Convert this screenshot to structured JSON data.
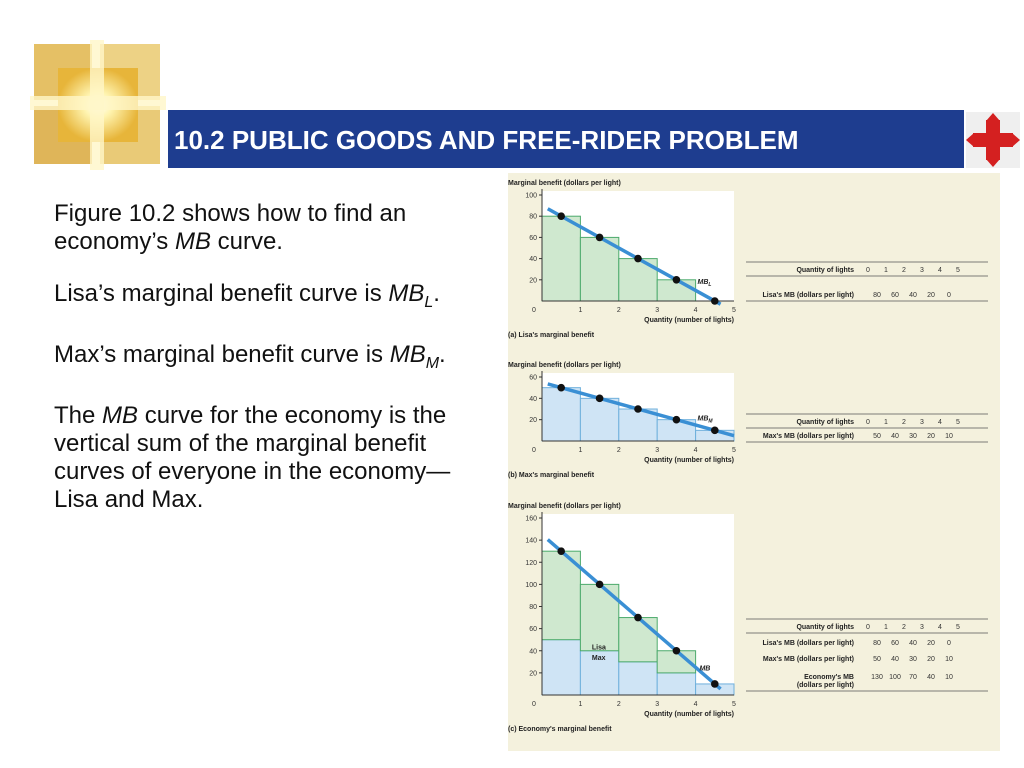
{
  "header": {
    "title": "10.2 PUBLIC GOODS AND FREE-RIDER PROBLEM",
    "icons": {
      "logo": "gold-square-logo-icon",
      "nav": "red-cross-arrows-icon"
    }
  },
  "text": {
    "p1_pre": "Figure 10.2 shows how to find an economy’s ",
    "p1_em": "MB",
    "p1_post": " curve.",
    "p2_pre": "Lisa’s marginal benefit curve is ",
    "p2_em": "MB",
    "p2_sub": "L",
    "p2_post": ".",
    "p3_pre": "Max’s marginal benefit curve is ",
    "p3_em": "MB",
    "p3_sub": "M",
    "p3_post": ".",
    "p4_pre": "The ",
    "p4_em": "MB",
    "p4_post": " curve for the economy is the vertical sum of the marginal benefit curves of everyone in the economy—Lisa and Max."
  },
  "colors": {
    "title_bar": "#1e3d8f",
    "green_bar": "#cfe8cf",
    "blue_bar": "#cfe4f5",
    "line": "#3a8fd4"
  },
  "chart_data": [
    {
      "type": "bar",
      "ylabel": "Marginal benefit (dollars per light)",
      "xlabel": "Quantity (number of lights)",
      "caption": "(a) Lisa's marginal benefit",
      "y_ticks": [
        "100",
        "80",
        "60",
        "40",
        "20"
      ],
      "x_ticks": [
        "0",
        "1",
        "2",
        "3",
        "4",
        "5"
      ],
      "ylim": [
        0,
        100
      ],
      "xlim": [
        0,
        5
      ],
      "values": [
        80,
        60,
        40,
        20,
        0
      ],
      "points": [
        [
          0.5,
          80
        ],
        [
          1.5,
          60
        ],
        [
          2.5,
          40
        ],
        [
          3.5,
          20
        ],
        [
          4.5,
          0
        ]
      ],
      "curve_label": "MB",
      "curve_sub": "L",
      "table": {
        "rows": [
          {
            "label": "Quantity of lights",
            "values": [
              "0",
              "1",
              "2",
              "3",
              "4",
              "5"
            ]
          },
          {
            "label": "Lisa's MB (dollars per light)",
            "values": [
              "80",
              "60",
              "40",
              "20",
              "0"
            ]
          }
        ]
      }
    },
    {
      "type": "bar",
      "ylabel": "Marginal benefit (dollars per light)",
      "xlabel": "Quantity (number of lights)",
      "caption": "(b) Max's marginal benefit",
      "y_ticks": [
        "60",
        "40",
        "20"
      ],
      "x_ticks": [
        "0",
        "1",
        "2",
        "3",
        "4",
        "5"
      ],
      "ylim": [
        0,
        60
      ],
      "xlim": [
        0,
        5
      ],
      "values": [
        50,
        40,
        30,
        20,
        10
      ],
      "points": [
        [
          0.5,
          50
        ],
        [
          1.5,
          40
        ],
        [
          2.5,
          30
        ],
        [
          3.5,
          20
        ],
        [
          4.5,
          10
        ]
      ],
      "curve_label": "MB",
      "curve_sub": "M",
      "table": {
        "rows": [
          {
            "label": "Quantity of lights",
            "values": [
              "0",
              "1",
              "2",
              "3",
              "4",
              "5"
            ]
          },
          {
            "label": "Max's MB (dollars per light)",
            "values": [
              "50",
              "40",
              "30",
              "20",
              "10"
            ]
          }
        ]
      }
    },
    {
      "type": "bar",
      "ylabel": "Marginal benefit (dollars per light)",
      "xlabel": "Quantity (number of lights)",
      "caption": "(c) Economy's marginal benefit",
      "y_ticks": [
        "160",
        "140",
        "120",
        "100",
        "80",
        "60",
        "40",
        "20"
      ],
      "x_ticks": [
        "0",
        "1",
        "2",
        "3",
        "4",
        "5"
      ],
      "ylim": [
        0,
        160
      ],
      "xlim": [
        0,
        5
      ],
      "series": [
        {
          "name": "Max",
          "values": [
            50,
            40,
            30,
            20,
            10
          ]
        },
        {
          "name": "Lisa",
          "values": [
            80,
            60,
            40,
            20,
            0
          ]
        }
      ],
      "points": [
        [
          0.5,
          130
        ],
        [
          1.5,
          100
        ],
        [
          2.5,
          70
        ],
        [
          3.5,
          40
        ],
        [
          4.5,
          10
        ]
      ],
      "curve_label": "MB",
      "curve_sub": "",
      "table": {
        "rows": [
          {
            "label": "Quantity of lights",
            "values": [
              "0",
              "1",
              "2",
              "3",
              "4",
              "5"
            ]
          },
          {
            "label": "Lisa's MB (dollars per light)",
            "values": [
              "80",
              "60",
              "40",
              "20",
              "0"
            ]
          },
          {
            "label": "Max's MB (dollars per light)",
            "values": [
              "50",
              "40",
              "30",
              "20",
              "10"
            ]
          },
          {
            "label": "Economy's MB",
            "label2": "(dollars per light)",
            "values": [
              "130",
              "100",
              "70",
              "40",
              "10"
            ]
          }
        ]
      }
    }
  ]
}
